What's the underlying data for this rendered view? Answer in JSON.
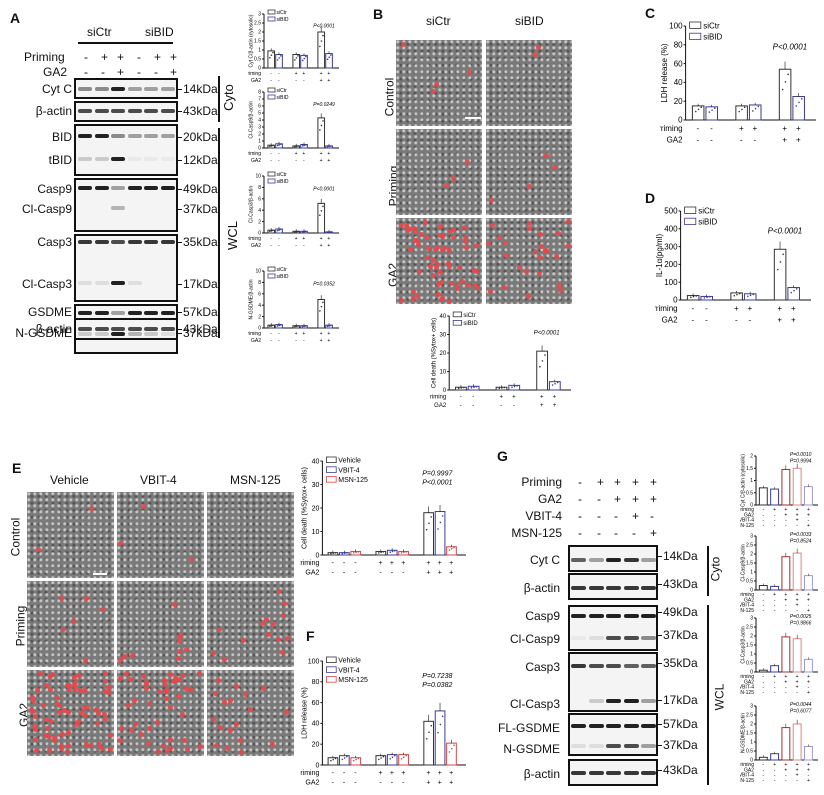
{
  "panelA": {
    "letter": "A",
    "groups": [
      "siCtr",
      "siBID"
    ],
    "rows": [
      {
        "label": "Priming",
        "signs": [
          "-",
          "+",
          "+",
          "-",
          "+",
          "+"
        ]
      },
      {
        "label": "GA2",
        "signs": [
          "-",
          "-",
          "+",
          "-",
          "-",
          "+"
        ]
      }
    ],
    "blots": [
      {
        "label": "Cyt C",
        "kda": "14kDa"
      },
      {
        "label": "β-actin",
        "kda": "43kDa"
      },
      {
        "label": "BID",
        "kda": "20kDa"
      },
      {
        "label": "tBID",
        "kda": "12kDa"
      },
      {
        "label": "Casp9",
        "kda": "49kDa"
      },
      {
        "label": "Cl-Casp9",
        "kda": "37kDa"
      },
      {
        "label": "Casp3",
        "kda": "35kDa"
      },
      {
        "label": "Cl-Casp3",
        "kda": "17kDa"
      },
      {
        "label": "GSDME",
        "kda": "57kDa"
      },
      {
        "label": "N-GSDME",
        "kda": "37kDa"
      },
      {
        "label": "β-actin",
        "kda": "43kDa"
      }
    ],
    "fractions": {
      "cyto": "Cyto",
      "wcl": "WCL"
    }
  },
  "panelB": {
    "letter": "B",
    "columns": [
      "siCtr",
      "siBID"
    ],
    "rows": [
      "Control",
      "Priming",
      "GA2"
    ]
  },
  "panelC": {
    "letter": "C"
  },
  "panelD": {
    "letter": "D"
  },
  "panelE": {
    "letter": "E",
    "columns": [
      "Vehicle",
      "VBIT-4",
      "MSN-125"
    ],
    "rows": [
      "Control",
      "Priming",
      "GA2"
    ]
  },
  "panelF": {
    "letter": "F"
  },
  "panelG": {
    "letter": "G",
    "rows": [
      {
        "label": "Priming",
        "signs": [
          "-",
          "+",
          "+",
          "+",
          "+"
        ]
      },
      {
        "label": "GA2",
        "signs": [
          "-",
          "-",
          "+",
          "+",
          "+"
        ]
      },
      {
        "label": "VBIT-4",
        "signs": [
          "-",
          "-",
          "-",
          "+",
          "-"
        ]
      },
      {
        "label": "MSN-125",
        "signs": [
          "-",
          "-",
          "-",
          "-",
          "+"
        ]
      }
    ],
    "blots": [
      {
        "label": "Cyt C",
        "kda": "14kDa"
      },
      {
        "label": "β-actin",
        "kda": "43kDa"
      },
      {
        "label": "Casp9",
        "kda": "49kDa"
      },
      {
        "label": "Cl-Casp9",
        "kda": "37kDa"
      },
      {
        "label": "Casp3",
        "kda": "35kDa"
      },
      {
        "label": "Cl-Casp3",
        "kda": "17kDa"
      },
      {
        "label": "FL-GSDME",
        "kda": "57kDa"
      },
      {
        "label": "N-GSDME",
        "kda": "37kDa"
      },
      {
        "label": "β-actin",
        "kda": "43kDa"
      }
    ],
    "fractions": {
      "cyto": "Cyto",
      "wcl": "WCL"
    }
  },
  "chart_data": [
    {
      "id": "A1",
      "type": "bar",
      "ylabel": "Cyt C/β-actin (cytosolic)",
      "ylim": [
        0,
        3.0
      ],
      "yticks": [
        0.0,
        0.5,
        1.0,
        1.5,
        2.0,
        2.5,
        3.0
      ],
      "legend": [
        "siCtr",
        "siBID"
      ],
      "colors": {
        "siCtr": "#333333",
        "siBID": "#3b3b9a"
      },
      "categories": [
        "-/-",
        "+/-",
        "+/+"
      ],
      "series": [
        {
          "name": "siCtr",
          "values": [
            0.95,
            0.75,
            2.0
          ]
        },
        {
          "name": "siBID",
          "values": [
            0.75,
            0.7,
            0.8
          ]
        }
      ],
      "annotation": "P<0.0001",
      "xrows": {
        "Priming": [
          "-",
          "-",
          "+",
          "+",
          "+",
          "+"
        ],
        "GA2": [
          "-",
          "-",
          "-",
          "-",
          "+",
          "+"
        ]
      }
    },
    {
      "id": "A2",
      "type": "bar",
      "ylabel": "Cl-Casp9/β-actin",
      "ylim": [
        0,
        8
      ],
      "yticks": [
        0,
        1,
        2,
        3,
        4,
        5,
        6,
        7,
        8
      ],
      "legend": [
        "siCtr",
        "siBID"
      ],
      "categories": [
        "-/-",
        "+/-",
        "+/+"
      ],
      "series": [
        {
          "name": "siCtr",
          "values": [
            0.4,
            0.3,
            4.3
          ]
        },
        {
          "name": "siBID",
          "values": [
            0.6,
            0.5,
            0.3
          ]
        }
      ],
      "annotation": "P=0.0249"
    },
    {
      "id": "A3",
      "type": "bar",
      "ylabel": "Cl-Casp3/β-actin",
      "ylim": [
        0,
        10
      ],
      "yticks": [
        0,
        2,
        4,
        6,
        8,
        10
      ],
      "legend": [
        "siCtr",
        "siBID"
      ],
      "categories": [
        "-/-",
        "+/-",
        "+/+"
      ],
      "series": [
        {
          "name": "siCtr",
          "values": [
            0.5,
            0.3,
            5.2
          ]
        },
        {
          "name": "siBID",
          "values": [
            0.7,
            0.3,
            0.2
          ]
        }
      ],
      "annotation": "P<0.0001"
    },
    {
      "id": "A4",
      "type": "bar",
      "ylabel": "N-GSDME/β-actin",
      "ylim": [
        0,
        10
      ],
      "yticks": [
        0,
        2,
        4,
        6,
        8,
        10
      ],
      "legend": [
        "siCtr",
        "siBID"
      ],
      "categories": [
        "-/-",
        "+/-",
        "+/+"
      ],
      "series": [
        {
          "name": "siCtr",
          "values": [
            0.5,
            0.4,
            5.0
          ]
        },
        {
          "name": "siBID",
          "values": [
            0.6,
            0.4,
            0.5
          ]
        }
      ],
      "annotation": "P=0.0352"
    },
    {
      "id": "B",
      "type": "bar",
      "ylabel": "Cell death (%Sytox+ cells)",
      "ylim": [
        0,
        40
      ],
      "yticks": [
        0,
        10,
        20,
        30,
        40
      ],
      "legend": [
        "siCtr",
        "siBID"
      ],
      "categories": [
        "-/-",
        "+/-",
        "+/+"
      ],
      "series": [
        {
          "name": "siCtr",
          "values": [
            1.5,
            1.5,
            21
          ]
        },
        {
          "name": "siBID",
          "values": [
            2,
            2.5,
            4.5
          ]
        }
      ],
      "annotation": "P<0.0001"
    },
    {
      "id": "C",
      "type": "bar",
      "ylabel": "LDH release (%)",
      "ylim": [
        0,
        100
      ],
      "yticks": [
        0,
        20,
        40,
        60,
        80,
        100
      ],
      "legend": [
        "siCtr",
        "siBID"
      ],
      "categories": [
        "-/-",
        "+/-",
        "+/+"
      ],
      "series": [
        {
          "name": "siCtr",
          "values": [
            15,
            15,
            54
          ]
        },
        {
          "name": "siBID",
          "values": [
            14,
            16,
            25
          ]
        }
      ],
      "annotation": "P<0.0001",
      "xrows": {
        "Priming": [
          "-",
          "-",
          "+",
          "+",
          "+",
          "+"
        ],
        "GA2": [
          "-",
          "-",
          "-",
          "-",
          "+",
          "+"
        ]
      }
    },
    {
      "id": "D",
      "type": "bar",
      "ylabel": "IL-1α(pg/ml)",
      "ylim": [
        0,
        500
      ],
      "yticks": [
        0,
        100,
        200,
        300,
        400,
        500
      ],
      "legend": [
        "siCtr",
        "siBID"
      ],
      "categories": [
        "-/-",
        "+/-",
        "+/+"
      ],
      "series": [
        {
          "name": "siCtr",
          "values": [
            25,
            40,
            285
          ]
        },
        {
          "name": "siBID",
          "values": [
            20,
            35,
            70
          ]
        }
      ],
      "annotation": "P<0.0001"
    },
    {
      "id": "E",
      "type": "bar",
      "ylabel": "Cell death (%Sytox+ cells)",
      "ylim": [
        0,
        40
      ],
      "yticks": [
        0,
        10,
        20,
        30,
        40
      ],
      "legend": [
        "Vehicle",
        "VBIT-4",
        "MSN-125"
      ],
      "colors": {
        "Vehicle": "#333333",
        "VBIT-4": "#3b3b9a",
        "MSN-125": "#d04848"
      },
      "categories": [
        "-/-",
        "+/-",
        "+/+"
      ],
      "series": [
        {
          "name": "Vehicle",
          "values": [
            1,
            1.5,
            18
          ]
        },
        {
          "name": "VBIT-4",
          "values": [
            1,
            2,
            18.5
          ]
        },
        {
          "name": "MSN-125",
          "values": [
            1.5,
            1.5,
            3.5
          ]
        }
      ],
      "annotations": [
        "P<0.0001",
        "P=0.9997"
      ]
    },
    {
      "id": "F",
      "type": "bar",
      "ylabel": "LDH release (%)",
      "ylim": [
        0,
        100
      ],
      "yticks": [
        0,
        20,
        40,
        60,
        80,
        100
      ],
      "legend": [
        "Vehicle",
        "VBIT-4",
        "MSN-125"
      ],
      "categories": [
        "-/-",
        "+/-",
        "+/+"
      ],
      "series": [
        {
          "name": "Vehicle",
          "values": [
            7,
            9,
            42
          ]
        },
        {
          "name": "VBIT-4",
          "values": [
            9,
            10,
            52
          ]
        },
        {
          "name": "MSN-125",
          "values": [
            7,
            10,
            21
          ]
        }
      ],
      "annotations": [
        "P=0.0382",
        "P=0.7238"
      ]
    },
    {
      "id": "G1",
      "type": "bar",
      "ylabel": "Cyt C/β-actin (cytosolic)",
      "ylim": [
        0,
        2.0
      ],
      "yticks": [
        0.0,
        0.5,
        1.0,
        1.5,
        2.0
      ],
      "categories": [
        "1",
        "2",
        "3",
        "4",
        "5"
      ],
      "values": [
        0.7,
        0.65,
        1.45,
        1.5,
        0.75
      ],
      "colors": [
        "#333333",
        "#3b3b9a",
        "#a03030",
        "#d88888",
        "#9a9ad0"
      ],
      "annotations": [
        "P=0.0010",
        "P=0.9994"
      ]
    },
    {
      "id": "G2",
      "type": "bar",
      "ylabel": "Cl-Casp9/β-actin",
      "ylim": [
        0,
        3.0
      ],
      "yticks": [
        0.0,
        0.5,
        1.0,
        1.5,
        2.0,
        2.5,
        3.0
      ],
      "categories": [
        "1",
        "2",
        "3",
        "4",
        "5"
      ],
      "values": [
        0.25,
        0.2,
        1.85,
        2.05,
        0.8
      ],
      "annotations": [
        "P=0.0033",
        "P=0.8524"
      ]
    },
    {
      "id": "G3",
      "type": "bar",
      "ylabel": "Cl-Casp3/β-actin",
      "ylim": [
        0,
        3.0
      ],
      "yticks": [
        0.0,
        0.5,
        1.0,
        1.5,
        2.0,
        2.5,
        3.0
      ],
      "categories": [
        "1",
        "2",
        "3",
        "4",
        "5"
      ],
      "values": [
        0.1,
        0.35,
        1.95,
        1.85,
        0.7
      ],
      "annotations": [
        "P=0.0025",
        "P=0.9866"
      ]
    },
    {
      "id": "G4",
      "type": "bar",
      "ylabel": "N-GSDME/β-actin",
      "ylim": [
        0,
        3.0
      ],
      "yticks": [
        0.0,
        0.5,
        1.0,
        1.5,
        2.0,
        2.5,
        3.0
      ],
      "categories": [
        "1",
        "2",
        "3",
        "4",
        "5"
      ],
      "values": [
        0.15,
        0.35,
        1.8,
        2.0,
        0.75
      ],
      "annotations": [
        "P=0.0044",
        "P=0.6077"
      ]
    }
  ]
}
